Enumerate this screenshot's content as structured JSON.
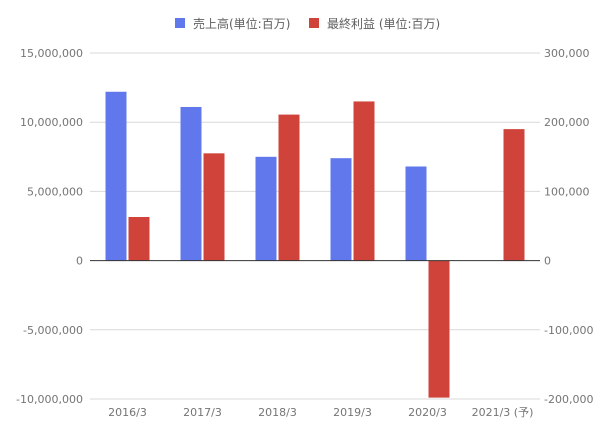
{
  "chart_data": {
    "type": "bar",
    "categories": [
      "2016/3",
      "2017/3",
      "2018/3",
      "2019/3",
      "2020/3",
      "2021/3 (予)"
    ],
    "series": [
      {
        "name": "売上高(単位:百万)",
        "axis": "left",
        "color": "#6178ec",
        "values": [
          12200000,
          11100000,
          7500000,
          7400000,
          6800000,
          null
        ]
      },
      {
        "name": "最終利益 (単位:百万)",
        "axis": "right",
        "color": "#d0433a",
        "values": [
          63000,
          155000,
          211000,
          230000,
          -198000,
          190000
        ]
      }
    ],
    "y_left": {
      "range": [
        -10000000,
        15000000
      ],
      "ticks": [
        15000000,
        10000000,
        5000000,
        0,
        -5000000,
        -10000000
      ],
      "tick_labels": [
        "15,000,000",
        "10,000,000",
        "5,000,000",
        "0",
        "-5,000,000",
        "-10,000,000"
      ]
    },
    "y_right": {
      "range": [
        -200000,
        300000
      ],
      "ticks": [
        300000,
        200000,
        100000,
        0,
        -100000,
        -200000
      ],
      "tick_labels": [
        "300,000",
        "200,000",
        "100,000",
        "0",
        "-100,000",
        "-200,000"
      ]
    },
    "grid": true,
    "legend_position": "top-center",
    "title": "",
    "xlabel": "",
    "ylabel": ""
  }
}
